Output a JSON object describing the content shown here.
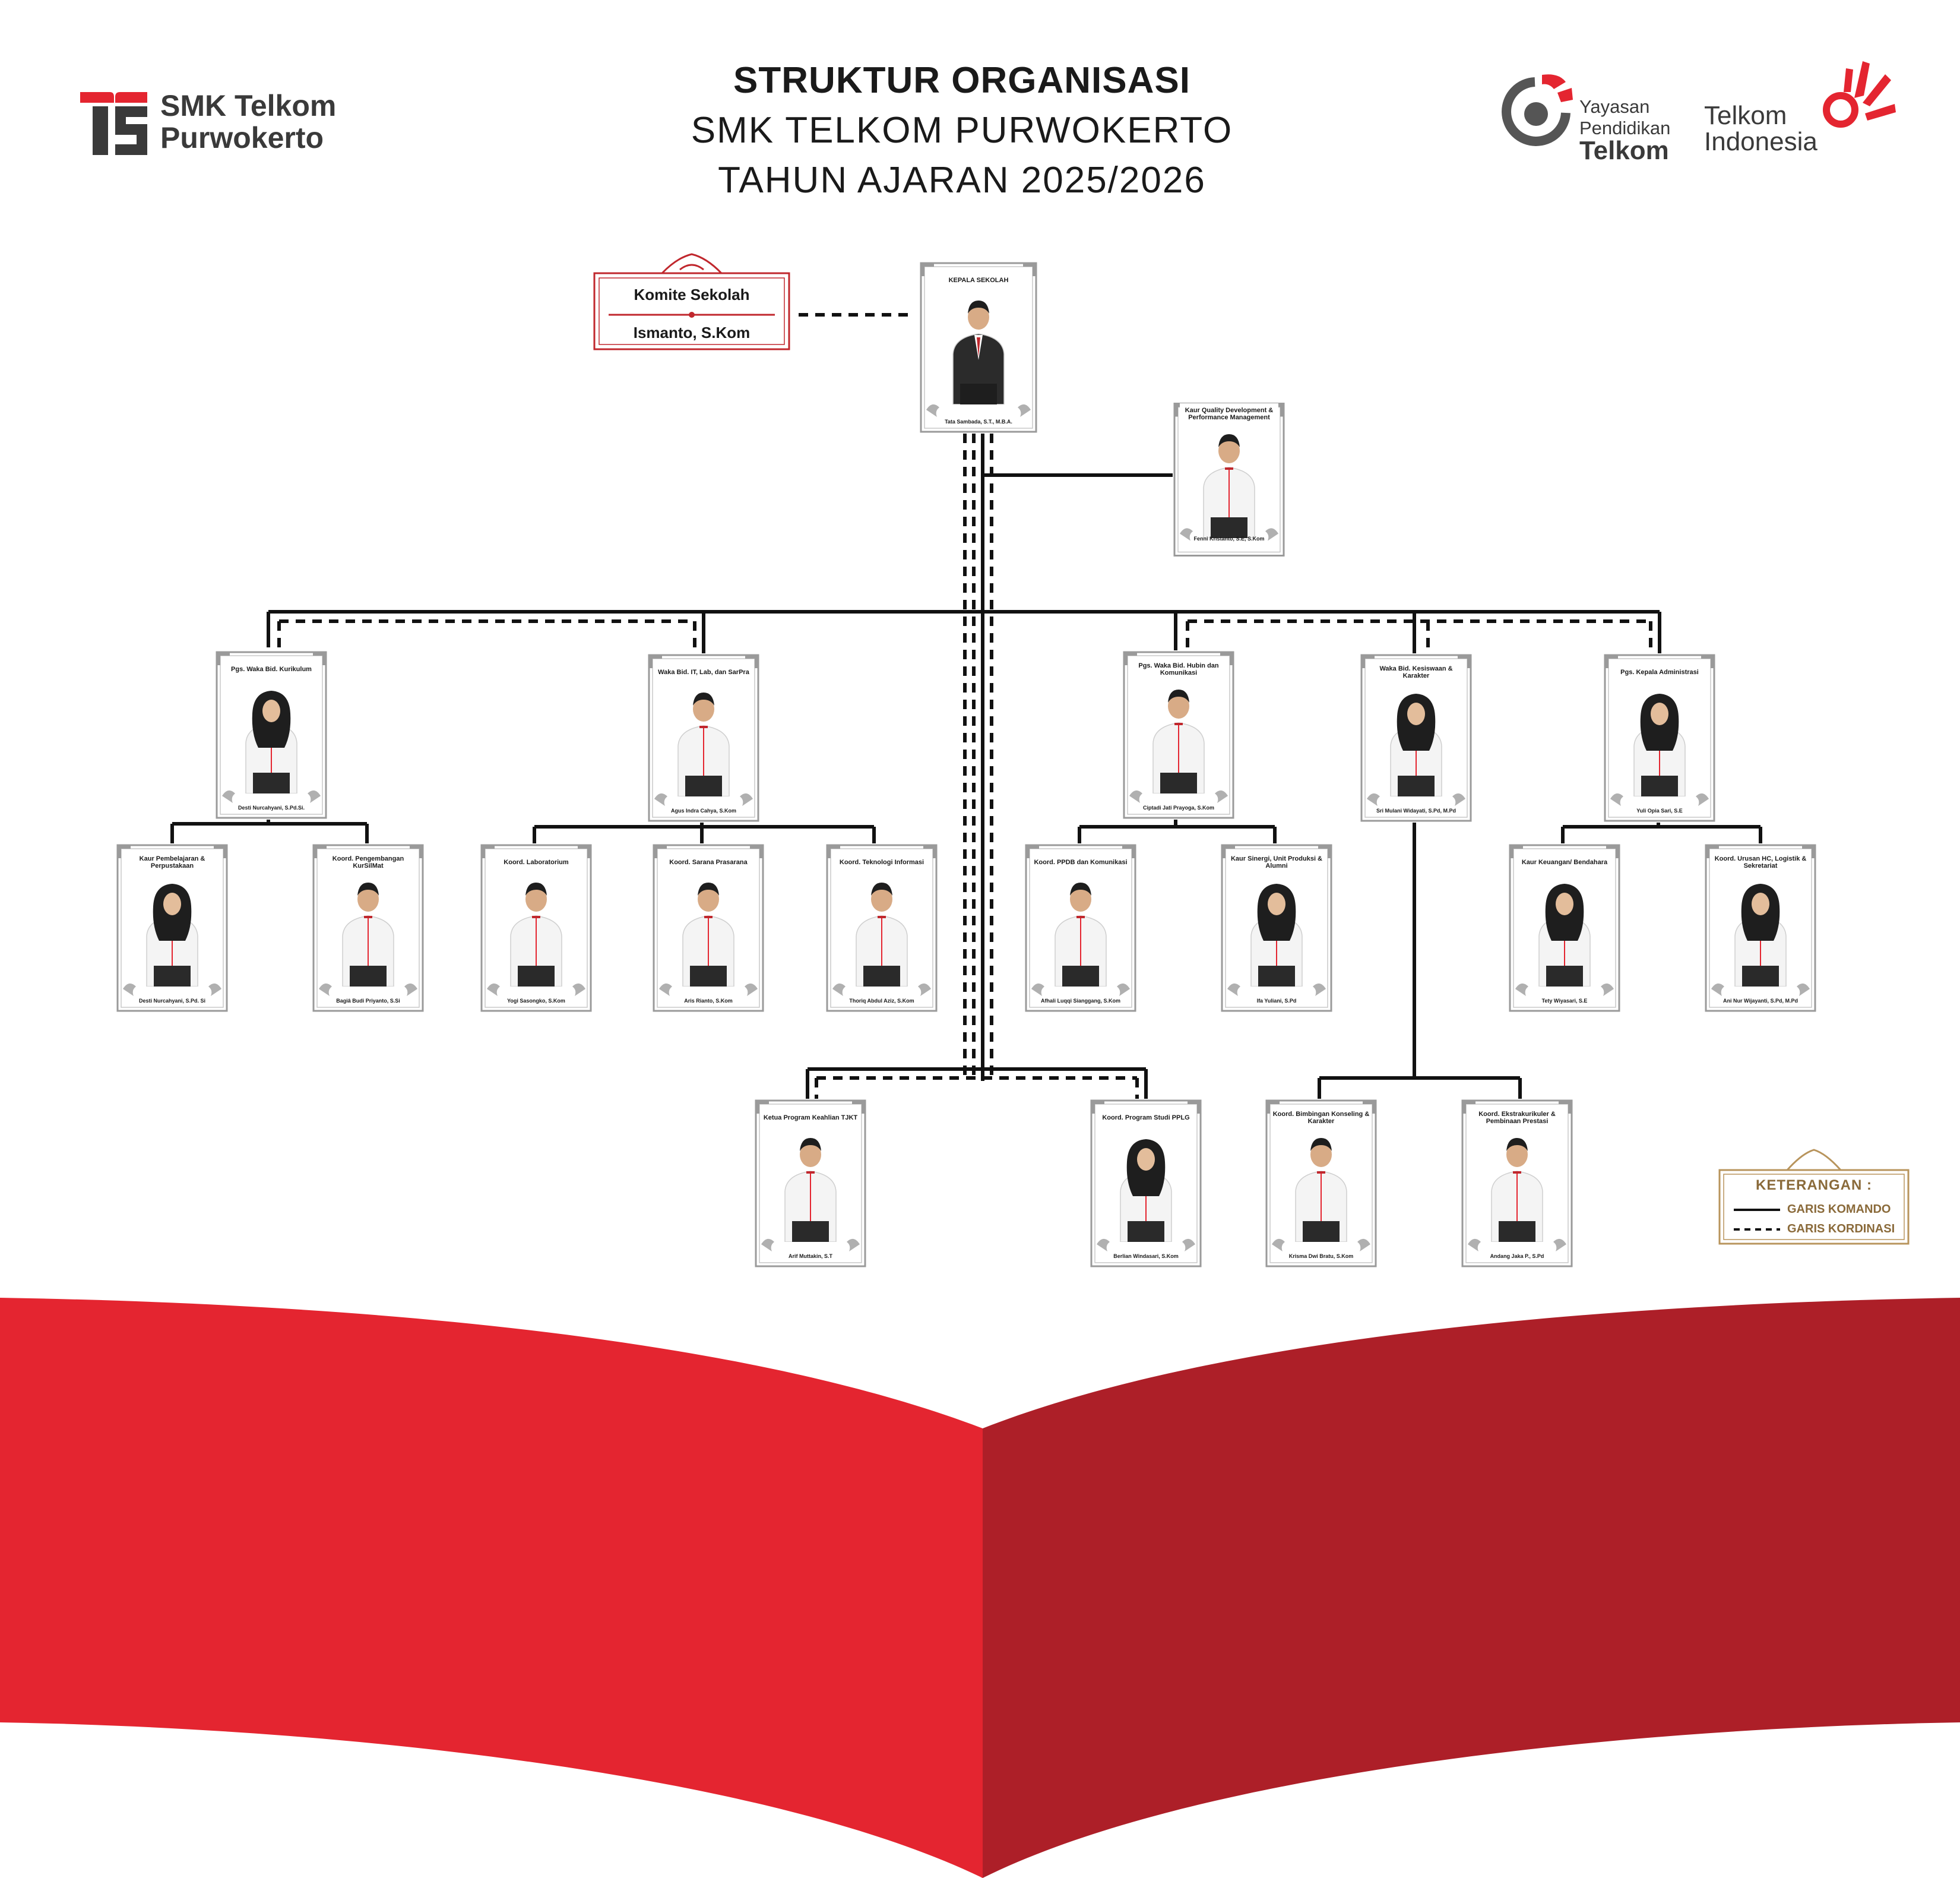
{
  "header": {
    "title": "STRUKTUR ORGANISASI",
    "school": "SMK TELKOM PURWOKERTO",
    "year": "TAHUN AJARAN 2025/2026"
  },
  "logos": {
    "smk_line1": "SMK Telkom",
    "smk_line2": "Purwokerto",
    "ypt_line1": "Yayasan",
    "ypt_line2": "Pendidikan",
    "ypt_line3": "Telkom",
    "telkom_line1": "Telkom",
    "telkom_line2": "Indonesia"
  },
  "komite": {
    "title": "Komite Sekolah",
    "name": "Ismanto, S.Kom"
  },
  "colors": {
    "brand_red": "#e42530",
    "dark_red": "#ad1f28",
    "gold": "#8a6a3a",
    "line": "#111111"
  },
  "people": {
    "kepsek": {
      "role": "KEPALA SEKOLAH",
      "name": "Tata Sambada, S.T., M.B.A."
    },
    "qd": {
      "role": "Kaur Quality Development & Performance Management",
      "name": "Fenni Kristanto, S.E, S.Kom"
    },
    "kurikulum": {
      "role": "Pgs. Waka Bid. Kurikulum",
      "name": "Desti Nurcahyani, S.Pd.Si."
    },
    "it": {
      "role": "Waka Bid. IT, Lab, dan SarPra",
      "name": "Agus Indra Cahya, S.Kom"
    },
    "hubin": {
      "role": "Pgs. Waka Bid. Hubin dan Komunikasi",
      "name": "Ciptadi Jati Prayoga, S.Kom"
    },
    "kesiswaan": {
      "role": "Waka Bid. Kesiswaan & Karakter",
      "name": "Sri Mulani Widayati, S.Pd, M.Pd"
    },
    "adm": {
      "role": "Pgs. Kepala Administrasi",
      "name": "Yuli Opia Sari, S.E"
    },
    "perpus": {
      "role": "Kaur Pembelajaran & Perpustakaan",
      "name": "Desti Nurcahyani, S.Pd. Si"
    },
    "kursil": {
      "role": "Koord. Pengembangan KurSilMat",
      "name": "Bagiâ Budi Priyanto, S.Si"
    },
    "lab": {
      "role": "Koord. Laboratorium",
      "name": "Yogi Sasongko, S.Kom"
    },
    "sarpras": {
      "role": "Koord. Sarana Prasarana",
      "name": "Aris Rianto, S.Kom"
    },
    "ti": {
      "role": "Koord. Teknologi Informasi",
      "name": "Thoriq Abdul Aziz, S.Kom"
    },
    "ppdb": {
      "role": "Koord. PPDB dan Komunikasi",
      "name": "Afhali Luqqi Sianggang, S.Kom"
    },
    "sinergi": {
      "role": "Kaur Sinergi, Unit Produksi & Alumni",
      "name": "Ifa Yuliani, S.Pd"
    },
    "keuangan": {
      "role": "Kaur Keuangan/ Bendahara",
      "name": "Tety Wiyasari, S.E"
    },
    "hc": {
      "role": "Koord. Urusan HC, Logistik & Sekretariat",
      "name": "Ani Nur Wijayanti, S.Pd, M.Pd"
    },
    "tjkt": {
      "role": "Ketua Program Keahlian TJKT",
      "name": "Arif Muttakin, S.T"
    },
    "pplg": {
      "role": "Koord. Program Studi PPLG",
      "name": "Berlian Windasari, S.Kom"
    },
    "bk": {
      "role": "Koord. Bimbingan Konseling & Karakter",
      "name": "Krisma Dwi Bratu, S.Kom"
    },
    "ekskul": {
      "role": "Koord. Ekstrakurikuler & Pembinaan Prestasi",
      "name": "Andang Jaka P., S.Pd"
    }
  },
  "legend": {
    "title": "KETERANGAN :",
    "komando": "GARIS KOMANDO",
    "kordinasi": "GARIS KORDINASI"
  }
}
